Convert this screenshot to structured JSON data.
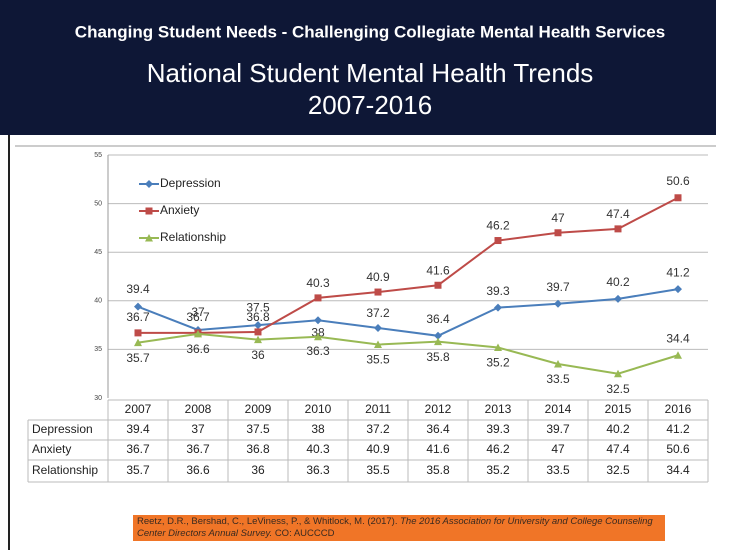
{
  "header": "Changing Student Needs - Challenging Collegiate Mental Health Services",
  "chart_data": {
    "type": "line",
    "title": "National Student Mental Health Trends",
    "subtitle": "2007-2016",
    "categories": [
      "2007",
      "2008",
      "2009",
      "2010",
      "2011",
      "2012",
      "2013",
      "2014",
      "2015",
      "2016"
    ],
    "series": [
      {
        "name": "Depression",
        "color": "#4a7ebb",
        "marker": "diamond",
        "values": [
          39.4,
          37,
          37.5,
          38,
          37.2,
          36.4,
          39.3,
          39.7,
          40.2,
          41.2
        ]
      },
      {
        "name": "Anxiety",
        "color": "#be4b48",
        "marker": "square",
        "values": [
          36.7,
          36.7,
          36.8,
          40.3,
          40.9,
          41.6,
          46.2,
          47,
          47.4,
          50.6
        ]
      },
      {
        "name": "Relationship",
        "color": "#98b954",
        "marker": "triangle",
        "values": [
          35.7,
          36.6,
          36,
          36.3,
          35.5,
          35.8,
          35.2,
          33.5,
          32.5,
          34.4
        ]
      }
    ],
    "ylim": [
      30,
      55
    ],
    "yticks": [
      30,
      35,
      40,
      45,
      50,
      55
    ],
    "grid": true,
    "legend": "top-left",
    "data_table": true
  },
  "citation": {
    "authors": "Reetz, D.R., Bershad, C., LeViness, P., & Whitlock, M. (2017).",
    "title": "The 2016 Association for University and College Counseling Center Directors Annual Survey.",
    "source": "CO: AUCCCD"
  }
}
